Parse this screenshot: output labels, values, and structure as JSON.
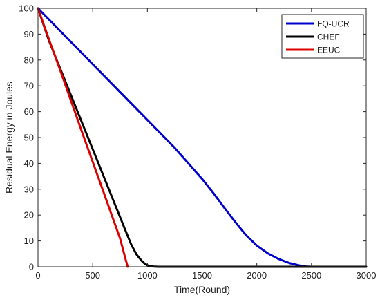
{
  "chart_data": {
    "type": "line",
    "xlabel": "Time(Round)",
    "ylabel": "Residual Energy in Joules",
    "xlim": [
      0,
      3000
    ],
    "ylim": [
      0,
      100
    ],
    "xticks": [
      0,
      500,
      1000,
      1500,
      2000,
      2500,
      3000
    ],
    "yticks": [
      0,
      10,
      20,
      30,
      40,
      50,
      60,
      70,
      80,
      90,
      100
    ],
    "xtick_labels": [
      "0",
      "500",
      "1000",
      "1500",
      "2000",
      "2500",
      "3000"
    ],
    "ytick_labels": [
      "0",
      "10",
      "20",
      "30",
      "40",
      "50",
      "60",
      "70",
      "80",
      "90",
      "100"
    ],
    "grid": false,
    "legend_position": "top-right",
    "series": [
      {
        "name": "FQ-UCR",
        "color": "#0000cc",
        "x": [
          0,
          250,
          500,
          750,
          1000,
          1250,
          1500,
          1600,
          1700,
          1800,
          1900,
          2000,
          2100,
          2200,
          2300,
          2400,
          2450,
          2500,
          3000
        ],
        "y": [
          100,
          89.2,
          78.4,
          67.6,
          56.8,
          46,
          34,
          28.7,
          23,
          17.5,
          12.3,
          8.2,
          5.2,
          3,
          1.4,
          0.4,
          0.1,
          0,
          0
        ]
      },
      {
        "name": "CHEF",
        "color": "#000000",
        "x": [
          0,
          100,
          200,
          300,
          400,
          500,
          600,
          700,
          800,
          850,
          900,
          950,
          975,
          1000,
          1025,
          1050,
          1100,
          3000
        ],
        "y": [
          100,
          87.5,
          77,
          66.5,
          56,
          45.5,
          35,
          24.5,
          14,
          8.8,
          4.8,
          2.2,
          1.2,
          0.6,
          0.3,
          0.1,
          0,
          0
        ]
      },
      {
        "name": "EEUC",
        "color": "#dd0000",
        "x": [
          0,
          100,
          200,
          300,
          400,
          500,
          600,
          700,
          750,
          800,
          820
        ],
        "y": [
          100,
          88,
          76.4,
          64.4,
          52.4,
          40.6,
          28.8,
          16.9,
          11,
          3,
          0
        ]
      }
    ]
  }
}
